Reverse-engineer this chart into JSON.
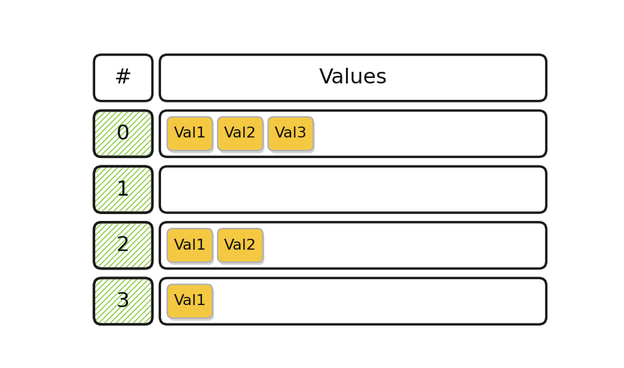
{
  "background_color": "#ffffff",
  "header_label": "#",
  "header_value": "Values",
  "rows": [
    {
      "index": "0",
      "values": [
        "Val1",
        "Val2",
        "Val3"
      ]
    },
    {
      "index": "1",
      "values": []
    },
    {
      "index": "2",
      "values": [
        "Val1",
        "Val2"
      ]
    },
    {
      "index": "3",
      "values": [
        "Val1"
      ]
    }
  ],
  "index_bg_color": "#ffffff",
  "index_hatch": "////",
  "index_hatch_color": "#7ec832",
  "value_box_bg": "#f5c842",
  "value_box_shadow": "#b0b0b0",
  "outer_box_bg": "#ffffff",
  "outer_box_border": "#1a1a1a",
  "header_bg": "#ffffff",
  "text_color": "#111111",
  "font_size_index": 22,
  "font_size_value": 16,
  "font_size_header": 22,
  "border_lw": 2.5
}
